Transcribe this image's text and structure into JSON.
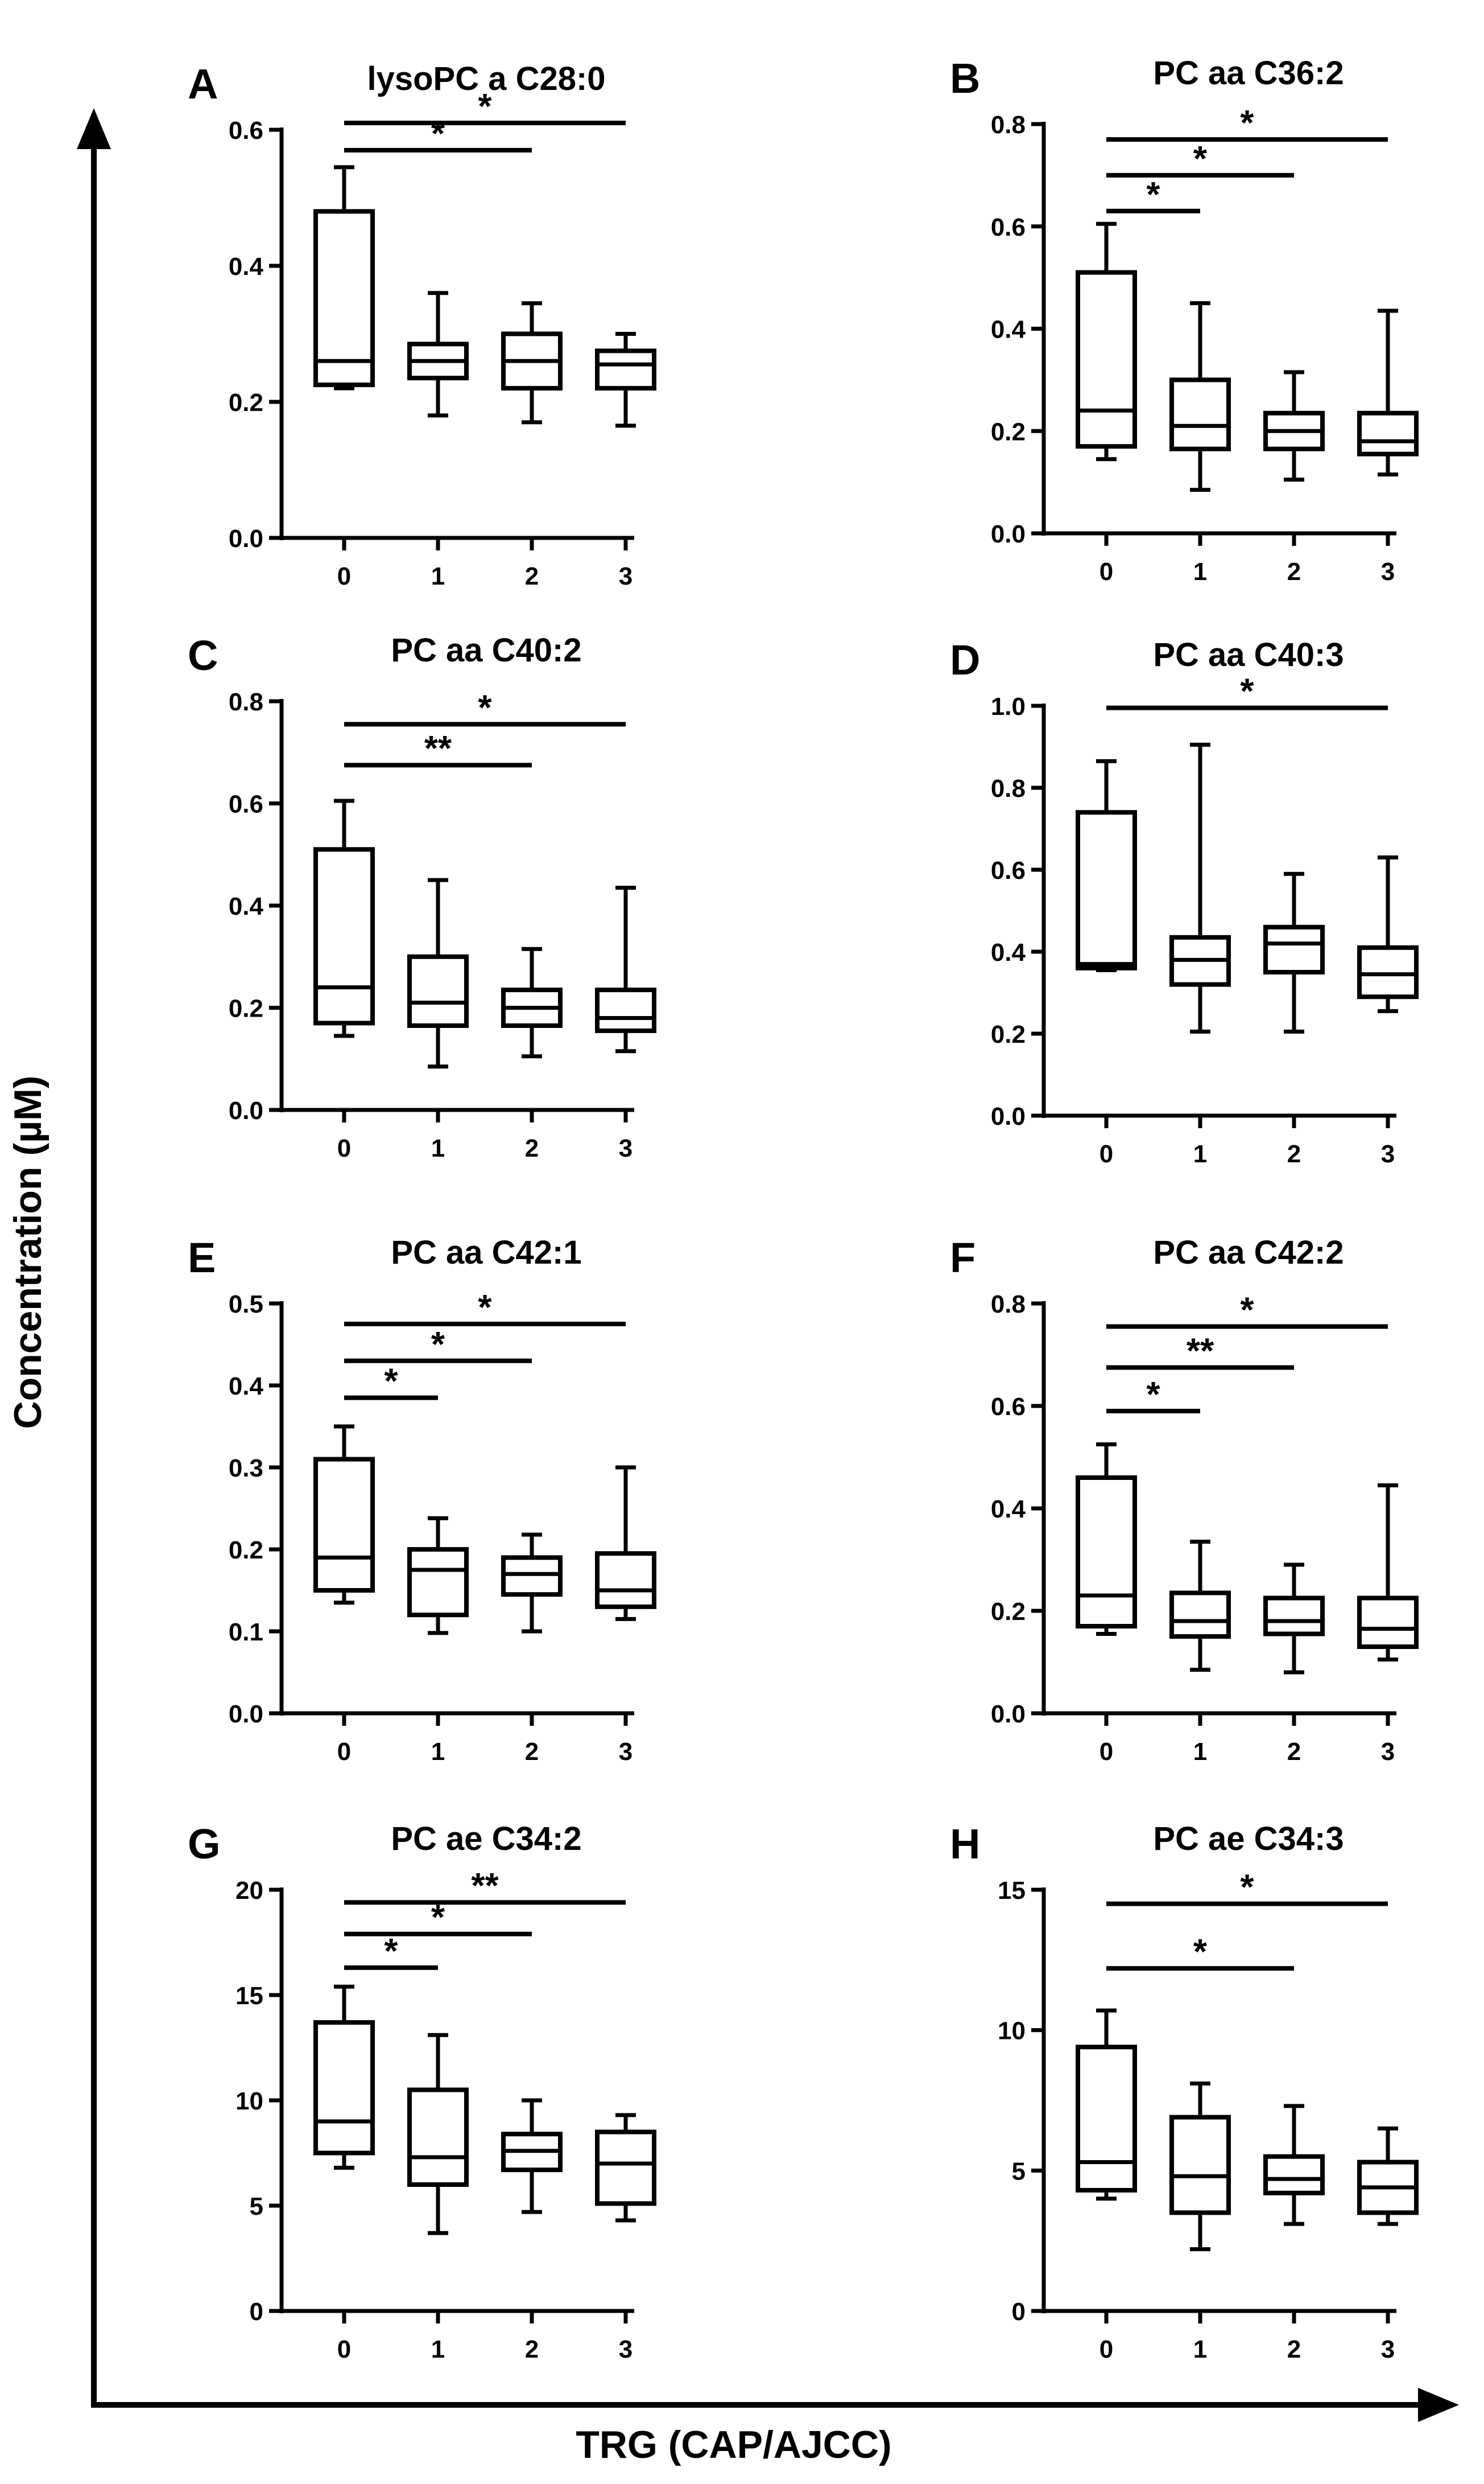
{
  "figure": {
    "x_axis_title": "TRG (CAP/AJCC)",
    "y_axis_title": "Concentration (µM)"
  },
  "chart_data": [
    {
      "type": "box",
      "panel": "A",
      "title": "lysoPC a C28:0",
      "categories": [
        "0",
        "1",
        "2",
        "3"
      ],
      "ylim": [
        0,
        0.6
      ],
      "yticks": [
        "0.0",
        "0.2",
        "0.4",
        "0.6"
      ],
      "yticks_values": [
        0,
        0.2,
        0.4,
        0.6
      ],
      "boxes": [
        {
          "min": 0.22,
          "q1": 0.225,
          "median": 0.26,
          "q3": 0.48,
          "max": 0.545
        },
        {
          "min": 0.18,
          "q1": 0.235,
          "median": 0.26,
          "q3": 0.285,
          "max": 0.36
        },
        {
          "min": 0.17,
          "q1": 0.22,
          "median": 0.26,
          "q3": 0.3,
          "max": 0.345
        },
        {
          "min": 0.165,
          "q1": 0.22,
          "median": 0.255,
          "q3": 0.275,
          "max": 0.3
        }
      ],
      "significance": [
        {
          "from": 0,
          "to": 3,
          "y": 0.61,
          "label": "*"
        },
        {
          "from": 0,
          "to": 2,
          "y": 0.57,
          "label": "*"
        }
      ]
    },
    {
      "type": "box",
      "panel": "B",
      "title": "PC aa C36:2",
      "categories": [
        "0",
        "1",
        "2",
        "3"
      ],
      "ylim": [
        0,
        0.8
      ],
      "yticks": [
        "0.0",
        "0.2",
        "0.4",
        "0.6",
        "0.8"
      ],
      "yticks_values": [
        0,
        0.2,
        0.4,
        0.6,
        0.8
      ],
      "boxes": [
        {
          "min": 0.145,
          "q1": 0.17,
          "median": 0.24,
          "q3": 0.51,
          "max": 0.605
        },
        {
          "min": 0.085,
          "q1": 0.165,
          "median": 0.21,
          "q3": 0.3,
          "max": 0.45
        },
        {
          "min": 0.105,
          "q1": 0.165,
          "median": 0.2,
          "q3": 0.235,
          "max": 0.315
        },
        {
          "min": 0.115,
          "q1": 0.155,
          "median": 0.18,
          "q3": 0.235,
          "max": 0.435
        }
      ],
      "significance": [
        {
          "from": 0,
          "to": 3,
          "y": 0.77,
          "label": "*"
        },
        {
          "from": 0,
          "to": 2,
          "y": 0.7,
          "label": "*"
        },
        {
          "from": 0,
          "to": 1,
          "y": 0.63,
          "label": "*"
        }
      ]
    },
    {
      "type": "box",
      "panel": "C",
      "title": "PC aa C40:2",
      "categories": [
        "0",
        "1",
        "2",
        "3"
      ],
      "ylim": [
        0,
        0.8
      ],
      "yticks": [
        "0.0",
        "0.2",
        "0.4",
        "0.6",
        "0.8"
      ],
      "yticks_values": [
        0,
        0.2,
        0.4,
        0.6,
        0.8
      ],
      "boxes": [
        {
          "min": 0.145,
          "q1": 0.17,
          "median": 0.24,
          "q3": 0.51,
          "max": 0.605
        },
        {
          "min": 0.085,
          "q1": 0.165,
          "median": 0.21,
          "q3": 0.3,
          "max": 0.45
        },
        {
          "min": 0.105,
          "q1": 0.165,
          "median": 0.2,
          "q3": 0.235,
          "max": 0.315
        },
        {
          "min": 0.115,
          "q1": 0.155,
          "median": 0.18,
          "q3": 0.235,
          "max": 0.435
        }
      ],
      "significance": [
        {
          "from": 0,
          "to": 3,
          "y": 0.755,
          "label": "*"
        },
        {
          "from": 0,
          "to": 2,
          "y": 0.675,
          "label": "**"
        }
      ]
    },
    {
      "type": "box",
      "panel": "D",
      "title": "PC aa C40:3",
      "categories": [
        "0",
        "1",
        "2",
        "3"
      ],
      "ylim": [
        0,
        1.0
      ],
      "yticks": [
        "0.0",
        "0.2",
        "0.4",
        "0.6",
        "0.8",
        "1.0"
      ],
      "yticks_values": [
        0,
        0.2,
        0.4,
        0.6,
        0.8,
        1.0
      ],
      "boxes": [
        {
          "min": 0.355,
          "q1": 0.36,
          "median": 0.37,
          "q3": 0.74,
          "max": 0.865
        },
        {
          "min": 0.205,
          "q1": 0.32,
          "median": 0.38,
          "q3": 0.435,
          "max": 0.905
        },
        {
          "min": 0.205,
          "q1": 0.35,
          "median": 0.42,
          "q3": 0.46,
          "max": 0.59
        },
        {
          "min": 0.255,
          "q1": 0.29,
          "median": 0.345,
          "q3": 0.41,
          "max": 0.63
        }
      ],
      "significance": [
        {
          "from": 0,
          "to": 3,
          "y": 0.995,
          "label": "*"
        }
      ]
    },
    {
      "type": "box",
      "panel": "E",
      "title": "PC aa C42:1",
      "categories": [
        "0",
        "1",
        "2",
        "3"
      ],
      "ylim": [
        0,
        0.5
      ],
      "yticks": [
        "0.0",
        "0.1",
        "0.2",
        "0.3",
        "0.4",
        "0.5"
      ],
      "yticks_values": [
        0,
        0.1,
        0.2,
        0.3,
        0.4,
        0.5
      ],
      "boxes": [
        {
          "min": 0.135,
          "q1": 0.15,
          "median": 0.19,
          "q3": 0.31,
          "max": 0.35
        },
        {
          "min": 0.098,
          "q1": 0.12,
          "median": 0.175,
          "q3": 0.2,
          "max": 0.238
        },
        {
          "min": 0.1,
          "q1": 0.145,
          "median": 0.17,
          "q3": 0.19,
          "max": 0.218
        },
        {
          "min": 0.115,
          "q1": 0.13,
          "median": 0.15,
          "q3": 0.195,
          "max": 0.3
        }
      ],
      "significance": [
        {
          "from": 0,
          "to": 3,
          "y": 0.475,
          "label": "*"
        },
        {
          "from": 0,
          "to": 2,
          "y": 0.43,
          "label": "*"
        },
        {
          "from": 0,
          "to": 1,
          "y": 0.385,
          "label": "*"
        }
      ]
    },
    {
      "type": "box",
      "panel": "F",
      "title": "PC aa C42:2",
      "categories": [
        "0",
        "1",
        "2",
        "3"
      ],
      "ylim": [
        0,
        0.8
      ],
      "yticks": [
        "0.0",
        "0.2",
        "0.4",
        "0.6",
        "0.8"
      ],
      "yticks_values": [
        0,
        0.2,
        0.4,
        0.6,
        0.8
      ],
      "boxes": [
        {
          "min": 0.155,
          "q1": 0.17,
          "median": 0.23,
          "q3": 0.46,
          "max": 0.525
        },
        {
          "min": 0.085,
          "q1": 0.15,
          "median": 0.18,
          "q3": 0.235,
          "max": 0.335
        },
        {
          "min": 0.08,
          "q1": 0.155,
          "median": 0.18,
          "q3": 0.225,
          "max": 0.29
        },
        {
          "min": 0.105,
          "q1": 0.13,
          "median": 0.165,
          "q3": 0.225,
          "max": 0.445
        }
      ],
      "significance": [
        {
          "from": 0,
          "to": 3,
          "y": 0.755,
          "label": "*"
        },
        {
          "from": 0,
          "to": 2,
          "y": 0.675,
          "label": "**"
        },
        {
          "from": 0,
          "to": 1,
          "y": 0.59,
          "label": "*"
        }
      ]
    },
    {
      "type": "box",
      "panel": "G",
      "title": "PC ae C34:2",
      "categories": [
        "0",
        "1",
        "2",
        "3"
      ],
      "ylim": [
        0,
        20
      ],
      "yticks": [
        "0",
        "5",
        "10",
        "15",
        "20"
      ],
      "yticks_values": [
        0,
        5,
        10,
        15,
        20
      ],
      "boxes": [
        {
          "min": 6.8,
          "q1": 7.5,
          "median": 9.0,
          "q3": 13.7,
          "max": 15.4
        },
        {
          "min": 3.7,
          "q1": 6.0,
          "median": 7.3,
          "q3": 10.5,
          "max": 13.1
        },
        {
          "min": 4.7,
          "q1": 6.7,
          "median": 7.6,
          "q3": 8.4,
          "max": 10.0
        },
        {
          "min": 4.3,
          "q1": 5.1,
          "median": 7.0,
          "q3": 8.5,
          "max": 9.3
        }
      ],
      "significance": [
        {
          "from": 0,
          "to": 3,
          "y": 19.4,
          "label": "**"
        },
        {
          "from": 0,
          "to": 2,
          "y": 17.9,
          "label": "*"
        },
        {
          "from": 0,
          "to": 1,
          "y": 16.3,
          "label": "*"
        }
      ]
    },
    {
      "type": "box",
      "panel": "H",
      "title": "PC ae C34:3",
      "categories": [
        "0",
        "1",
        "2",
        "3"
      ],
      "ylim": [
        0,
        15
      ],
      "yticks": [
        "0",
        "5",
        "10",
        "15"
      ],
      "yticks_values": [
        0,
        5,
        10,
        15
      ],
      "boxes": [
        {
          "min": 4.0,
          "q1": 4.3,
          "median": 5.3,
          "q3": 9.4,
          "max": 10.7
        },
        {
          "min": 2.2,
          "q1": 3.5,
          "median": 4.8,
          "q3": 6.9,
          "max": 8.1
        },
        {
          "min": 3.1,
          "q1": 4.2,
          "median": 4.7,
          "q3": 5.5,
          "max": 7.3
        },
        {
          "min": 3.1,
          "q1": 3.5,
          "median": 4.4,
          "q3": 5.3,
          "max": 6.5
        }
      ],
      "significance": [
        {
          "from": 0,
          "to": 3,
          "y": 14.5,
          "label": "*"
        },
        {
          "from": 0,
          "to": 2,
          "y": 12.2,
          "label": "*"
        }
      ]
    }
  ]
}
